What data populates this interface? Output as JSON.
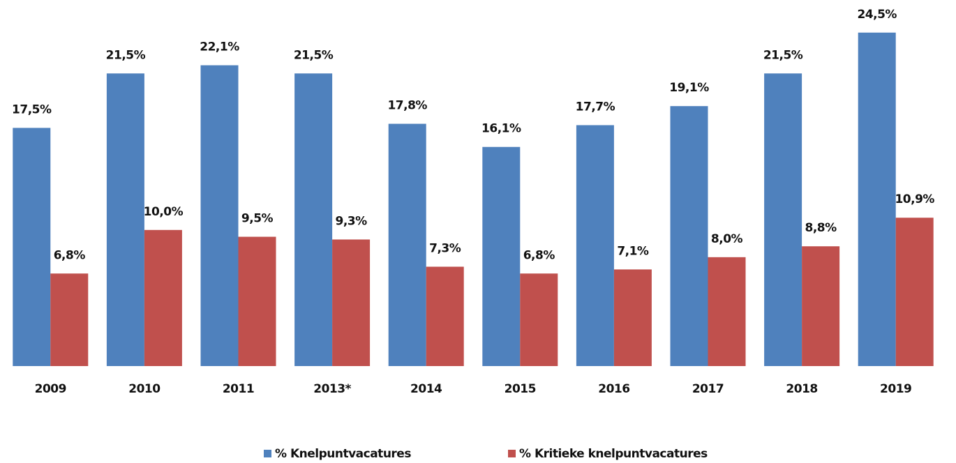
{
  "chart_data": {
    "type": "bar",
    "categories": [
      "2009",
      "2010",
      "2011",
      "2013*",
      "2014",
      "2015",
      "2016",
      "2017",
      "2018",
      "2019"
    ],
    "series": [
      {
        "name": "% Knelpuntvacatures",
        "color": "#4f81bd",
        "values": [
          17.5,
          21.5,
          22.1,
          21.5,
          17.8,
          16.1,
          17.7,
          19.1,
          21.5,
          24.5
        ],
        "value_labels": [
          "17,5%",
          "21,5%",
          "22,1%",
          "21,5%",
          "17,8%",
          "16,1%",
          "17,7%",
          "19,1%",
          "21,5%",
          "24,5%"
        ]
      },
      {
        "name": "% Kritieke knelpuntvacatures",
        "color": "#c0504d",
        "values": [
          6.8,
          10.0,
          9.5,
          9.3,
          7.3,
          6.8,
          7.1,
          8.0,
          8.8,
          10.9
        ],
        "value_labels": [
          "6,8%",
          "10,0%",
          "9,5%",
          "9,3%",
          "7,3%",
          "6,8%",
          "7,1%",
          "8,0%",
          "8,8%",
          "10,9%"
        ]
      }
    ],
    "ylim": [
      0,
      25
    ]
  }
}
